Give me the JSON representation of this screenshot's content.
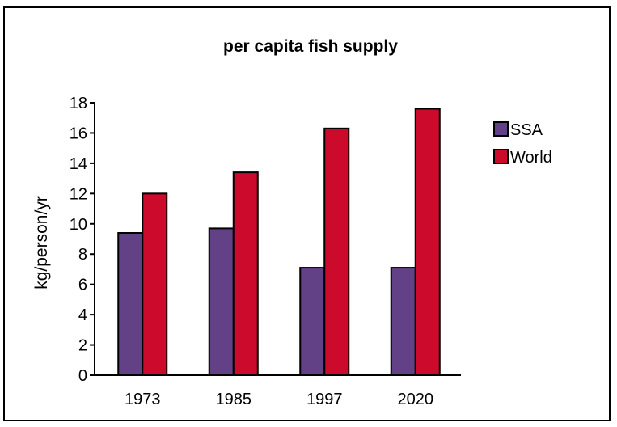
{
  "chart_data": {
    "type": "bar",
    "title": "per capita fish supply",
    "xlabel": "",
    "ylabel": "kg/person/yr",
    "categories": [
      "1973",
      "1985",
      "1997",
      "2020"
    ],
    "series": [
      {
        "name": "SSA",
        "color": "#634186",
        "values": [
          9.4,
          9.7,
          7.1,
          7.1
        ]
      },
      {
        "name": "World",
        "color": "#CC0A2B",
        "values": [
          12.0,
          13.4,
          16.3,
          17.6
        ]
      }
    ],
    "ylim": [
      0,
      18
    ],
    "yticks": [
      "0",
      "2",
      "4",
      "6",
      "8",
      "10",
      "12",
      "14",
      "16",
      "18"
    ],
    "grid": false,
    "legend_position": "right"
  }
}
